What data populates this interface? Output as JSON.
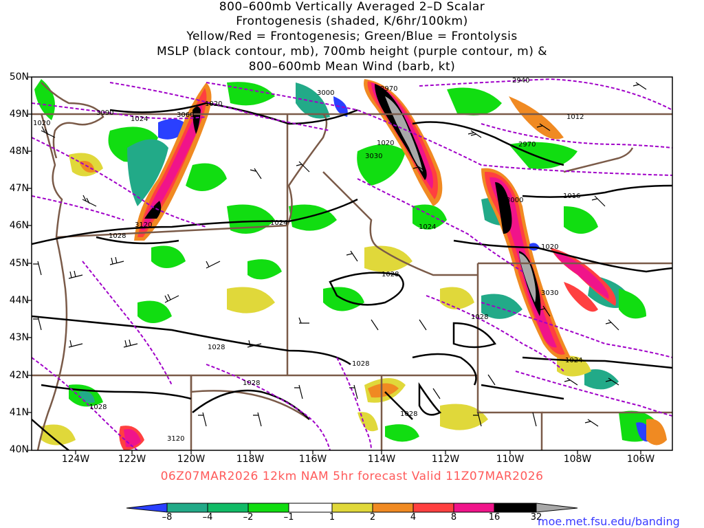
{
  "title": {
    "lines": [
      "800–600mb Vertically Averaged 2–D Scalar",
      "Frontogenesis (shaded, K/6hr/100km)",
      "Yellow/Red = Frontogenesis;  Green/Blue = Frontolysis",
      "MSLP (black contour, mb), 700mb height (purple contour, m) &",
      "800–600mb Mean Wind (barb, kt)"
    ]
  },
  "map": {
    "lat_labels": [
      "50N",
      "49N",
      "48N",
      "47N",
      "46N",
      "45N",
      "44N",
      "43N",
      "42N",
      "41N",
      "40N"
    ],
    "lon_labels": [
      "124W",
      "122W",
      "120W",
      "118W",
      "116W",
      "114W",
      "112W",
      "110W",
      "108W",
      "106W"
    ],
    "mslp_labels": [
      "1020",
      "1020",
      "1024",
      "1020",
      "1012",
      "1016",
      "1024",
      "1028",
      "1024",
      "1028",
      "1020",
      "1028",
      "1028",
      "1028",
      "1028",
      "1028",
      "1028",
      "1024"
    ],
    "height_labels": [
      "3090",
      "3060",
      "3000",
      "2970",
      "2940",
      "2970",
      "3030",
      "3000",
      "3120",
      "3030",
      "3120"
    ],
    "colors": {
      "mslp": "#000000",
      "height": "#a000c8",
      "state_lines": "#7a5a48",
      "blue": "#2a40ff",
      "teal": "#22aa88",
      "green": "#11dd11",
      "yellow": "#e0d83a",
      "orange": "#f08a22",
      "red": "#ff4040",
      "magenta": "#f0148a",
      "black": "#000000",
      "gray": "#a8a8a8"
    }
  },
  "forecast_text": "06Z07MAR2026  12km NAM 5hr forecast Valid 11Z07MAR2026",
  "colorbar": {
    "labels": [
      "–8",
      "–4",
      "–2",
      "–1",
      "1",
      "2",
      "4",
      "8",
      "16",
      "32"
    ],
    "colors": [
      "#2a40ff",
      "#22aa88",
      "#11bb66",
      "#11dd11",
      "#ffffff",
      "#e0d83a",
      "#f08a22",
      "#ff4040",
      "#f0148a",
      "#000000",
      "#a8a8a8"
    ]
  },
  "credit": "moe.met.fsu.edu/banding"
}
